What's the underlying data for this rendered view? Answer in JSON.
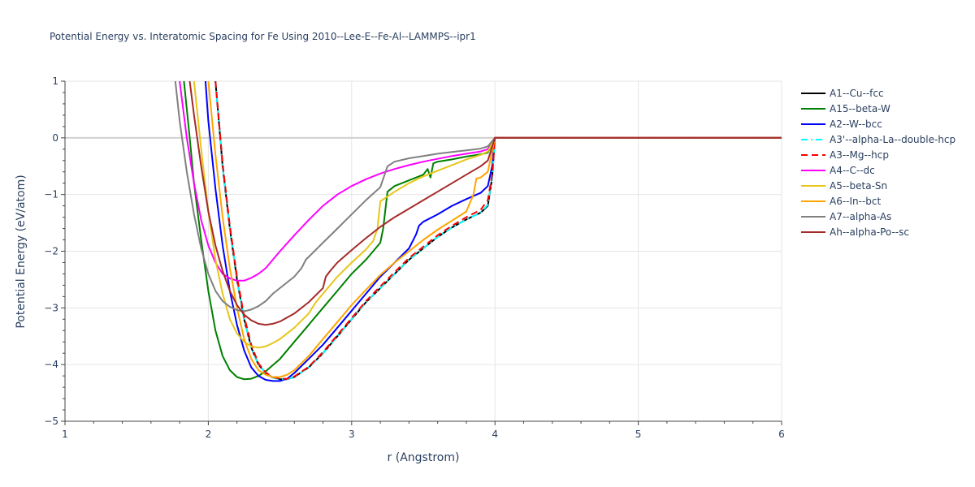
{
  "chart_data": {
    "type": "line",
    "title": "Potential Energy vs. Interatomic Spacing for Fe Using 2010--Lee-E--Fe-Al--LAMMPS--ipr1",
    "xlabel": "r (Angstrom)",
    "ylabel": "Potential Energy (eV/atom)",
    "xlim": [
      1,
      6
    ],
    "ylim": [
      -5,
      1
    ],
    "x_ticks": [
      1,
      2,
      3,
      4,
      5,
      6
    ],
    "y_ticks": [
      1,
      0,
      -1,
      -2,
      -3,
      -4,
      -5
    ],
    "y_tick_labels": [
      "1",
      "0",
      "−1",
      "−2",
      "−3",
      "−4",
      "−5"
    ],
    "grid": true,
    "legend_position": "right",
    "series": [
      {
        "name": "A1--Cu--fcc",
        "color": "#000000",
        "dash": "solid",
        "x": [
          2.05,
          2.1,
          2.15,
          2.2,
          2.25,
          2.3,
          2.35,
          2.4,
          2.45,
          2.5,
          2.55,
          2.6,
          2.7,
          2.8,
          2.9,
          3.0,
          3.1,
          3.2,
          3.3,
          3.4,
          3.5,
          3.6,
          3.7,
          3.8,
          3.9,
          3.95,
          3.98,
          4.0,
          6.0
        ],
        "y": [
          1.0,
          -0.5,
          -1.6,
          -2.5,
          -3.2,
          -3.7,
          -4.0,
          -4.15,
          -4.23,
          -4.26,
          -4.26,
          -4.22,
          -4.05,
          -3.8,
          -3.5,
          -3.2,
          -2.9,
          -2.65,
          -2.4,
          -2.15,
          -1.95,
          -1.75,
          -1.58,
          -1.44,
          -1.32,
          -1.2,
          -0.7,
          0.0,
          0.0
        ]
      },
      {
        "name": "A15--beta-W",
        "color": "#008000",
        "dash": "solid",
        "x": [
          1.83,
          1.87,
          1.9,
          1.95,
          2.0,
          2.05,
          2.1,
          2.15,
          2.2,
          2.25,
          2.3,
          2.35,
          2.4,
          2.5,
          2.6,
          2.7,
          2.8,
          2.9,
          3.0,
          3.1,
          3.15,
          3.2,
          3.22,
          3.25,
          3.3,
          3.4,
          3.5,
          3.53,
          3.55,
          3.57,
          3.6,
          3.7,
          3.8,
          3.9,
          3.95,
          4.0,
          6.0
        ],
        "y": [
          1.0,
          0.0,
          -0.8,
          -1.8,
          -2.7,
          -3.4,
          -3.85,
          -4.1,
          -4.22,
          -4.26,
          -4.25,
          -4.2,
          -4.12,
          -3.9,
          -3.6,
          -3.3,
          -3.0,
          -2.7,
          -2.4,
          -2.15,
          -2.0,
          -1.85,
          -1.6,
          -0.95,
          -0.85,
          -0.75,
          -0.65,
          -0.55,
          -0.7,
          -0.45,
          -0.42,
          -0.38,
          -0.33,
          -0.29,
          -0.26,
          0.0,
          0.0
        ]
      },
      {
        "name": "A2--W--bcc",
        "color": "#0000ff",
        "dash": "solid",
        "x": [
          1.98,
          2.0,
          2.05,
          2.1,
          2.15,
          2.2,
          2.25,
          2.3,
          2.35,
          2.4,
          2.45,
          2.5,
          2.55,
          2.6,
          2.7,
          2.8,
          2.9,
          3.0,
          3.1,
          3.2,
          3.3,
          3.4,
          3.45,
          3.47,
          3.5,
          3.6,
          3.7,
          3.8,
          3.9,
          3.95,
          3.98,
          4.0,
          6.0
        ],
        "y": [
          1.0,
          0.3,
          -0.9,
          -1.9,
          -2.7,
          -3.3,
          -3.75,
          -4.05,
          -4.2,
          -4.27,
          -4.29,
          -4.29,
          -4.25,
          -4.15,
          -3.9,
          -3.65,
          -3.35,
          -3.05,
          -2.75,
          -2.45,
          -2.2,
          -1.95,
          -1.7,
          -1.55,
          -1.48,
          -1.35,
          -1.2,
          -1.08,
          -0.97,
          -0.85,
          -0.5,
          0.0,
          0.0
        ]
      },
      {
        "name": "A3'--alpha-La--double-hcp",
        "color": "#00ffff",
        "dash": "dashdot",
        "x": [
          2.05,
          2.1,
          2.15,
          2.2,
          2.25,
          2.3,
          2.35,
          2.4,
          2.45,
          2.5,
          2.55,
          2.6,
          2.7,
          2.8,
          2.9,
          3.0,
          3.1,
          3.2,
          3.3,
          3.4,
          3.5,
          3.6,
          3.7,
          3.8,
          3.9,
          3.95,
          3.98,
          4.0,
          6.0
        ],
        "y": [
          1.0,
          -0.5,
          -1.6,
          -2.5,
          -3.2,
          -3.7,
          -4.0,
          -4.15,
          -4.23,
          -4.26,
          -4.26,
          -4.22,
          -4.05,
          -3.8,
          -3.5,
          -3.2,
          -2.9,
          -2.65,
          -2.4,
          -2.15,
          -1.95,
          -1.75,
          -1.58,
          -1.44,
          -1.32,
          -1.18,
          -0.7,
          0.0,
          0.0
        ]
      },
      {
        "name": "A3--Mg--hcp",
        "color": "#ff0000",
        "dash": "dash",
        "x": [
          2.05,
          2.1,
          2.15,
          2.2,
          2.25,
          2.3,
          2.35,
          2.4,
          2.45,
          2.5,
          2.55,
          2.6,
          2.7,
          2.8,
          2.9,
          3.0,
          3.1,
          3.2,
          3.3,
          3.4,
          3.5,
          3.6,
          3.7,
          3.8,
          3.9,
          3.95,
          3.98,
          4.0,
          6.0
        ],
        "y": [
          1.0,
          -0.45,
          -1.55,
          -2.45,
          -3.15,
          -3.65,
          -3.98,
          -4.14,
          -4.22,
          -4.25,
          -4.25,
          -4.21,
          -4.04,
          -3.78,
          -3.48,
          -3.18,
          -2.88,
          -2.62,
          -2.37,
          -2.12,
          -1.92,
          -1.72,
          -1.55,
          -1.4,
          -1.27,
          -1.1,
          -0.65,
          0.0,
          0.0
        ]
      },
      {
        "name": "A4--C--dc",
        "color": "#ff00ff",
        "dash": "solid",
        "x": [
          1.8,
          1.85,
          1.9,
          1.95,
          2.0,
          2.05,
          2.1,
          2.15,
          2.2,
          2.25,
          2.3,
          2.35,
          2.4,
          2.5,
          2.6,
          2.7,
          2.8,
          2.9,
          3.0,
          3.1,
          3.2,
          3.3,
          3.4,
          3.5,
          3.6,
          3.7,
          3.8,
          3.9,
          3.95,
          4.0,
          6.0
        ],
        "y": [
          1.0,
          0.0,
          -0.8,
          -1.45,
          -1.9,
          -2.2,
          -2.4,
          -2.48,
          -2.52,
          -2.52,
          -2.47,
          -2.4,
          -2.3,
          -2.0,
          -1.72,
          -1.45,
          -1.2,
          -1.0,
          -0.85,
          -0.73,
          -0.63,
          -0.55,
          -0.48,
          -0.42,
          -0.37,
          -0.32,
          -0.28,
          -0.24,
          -0.2,
          0.0,
          0.0
        ]
      },
      {
        "name": "A5--beta-Sn",
        "color": "#e6c619",
        "dash": "solid",
        "x": [
          1.9,
          1.95,
          2.0,
          2.05,
          2.1,
          2.15,
          2.2,
          2.25,
          2.3,
          2.35,
          2.4,
          2.45,
          2.5,
          2.6,
          2.7,
          2.75,
          2.8,
          2.9,
          3.0,
          3.1,
          3.15,
          3.18,
          3.2,
          3.3,
          3.4,
          3.5,
          3.6,
          3.7,
          3.8,
          3.9,
          3.95,
          4.0,
          6.0
        ],
        "y": [
          1.0,
          -0.2,
          -1.3,
          -2.15,
          -2.75,
          -3.2,
          -3.45,
          -3.6,
          -3.68,
          -3.7,
          -3.68,
          -3.62,
          -3.55,
          -3.35,
          -3.1,
          -2.9,
          -2.75,
          -2.45,
          -2.2,
          -1.97,
          -1.82,
          -1.6,
          -1.12,
          -0.95,
          -0.8,
          -0.68,
          -0.58,
          -0.48,
          -0.38,
          -0.3,
          -0.24,
          0.0,
          0.0
        ]
      },
      {
        "name": "A6--In--bct",
        "color": "#ffa500",
        "dash": "solid",
        "x": [
          2.0,
          2.05,
          2.1,
          2.15,
          2.2,
          2.25,
          2.3,
          2.35,
          2.4,
          2.45,
          2.5,
          2.55,
          2.6,
          2.7,
          2.8,
          2.9,
          3.0,
          3.1,
          3.2,
          3.3,
          3.4,
          3.5,
          3.6,
          3.7,
          3.8,
          3.85,
          3.87,
          3.9,
          3.95,
          4.0,
          6.0
        ],
        "y": [
          1.0,
          -0.3,
          -1.4,
          -2.3,
          -3.0,
          -3.55,
          -3.9,
          -4.1,
          -4.18,
          -4.22,
          -4.22,
          -4.18,
          -4.1,
          -3.85,
          -3.55,
          -3.25,
          -2.95,
          -2.68,
          -2.42,
          -2.2,
          -2.0,
          -1.8,
          -1.62,
          -1.46,
          -1.3,
          -1.0,
          -0.72,
          -0.7,
          -0.6,
          0.0,
          0.0
        ]
      },
      {
        "name": "A7--alpha-As",
        "color": "#808080",
        "dash": "solid",
        "x": [
          1.77,
          1.8,
          1.85,
          1.9,
          1.95,
          2.0,
          2.05,
          2.1,
          2.15,
          2.2,
          2.25,
          2.3,
          2.35,
          2.4,
          2.45,
          2.5,
          2.6,
          2.65,
          2.68,
          2.7,
          2.8,
          2.9,
          3.0,
          3.1,
          3.2,
          3.25,
          3.3,
          3.4,
          3.5,
          3.6,
          3.7,
          3.8,
          3.9,
          3.95,
          4.0,
          6.0
        ],
        "y": [
          1.0,
          0.3,
          -0.6,
          -1.35,
          -1.95,
          -2.4,
          -2.7,
          -2.88,
          -2.98,
          -3.04,
          -3.06,
          -3.03,
          -2.97,
          -2.88,
          -2.75,
          -2.65,
          -2.45,
          -2.3,
          -2.15,
          -2.1,
          -1.85,
          -1.6,
          -1.35,
          -1.1,
          -0.87,
          -0.5,
          -0.42,
          -0.36,
          -0.32,
          -0.28,
          -0.25,
          -0.22,
          -0.19,
          -0.15,
          0.0,
          0.0
        ]
      },
      {
        "name": "Ah--alpha-Po--sc",
        "color": "#a52a2a",
        "dash": "solid",
        "x": [
          1.87,
          1.9,
          1.95,
          2.0,
          2.05,
          2.1,
          2.15,
          2.2,
          2.25,
          2.3,
          2.35,
          2.4,
          2.45,
          2.5,
          2.6,
          2.7,
          2.8,
          2.82,
          2.85,
          2.9,
          3.0,
          3.1,
          3.2,
          3.3,
          3.4,
          3.5,
          3.6,
          3.7,
          3.8,
          3.9,
          3.95,
          4.0,
          6.0
        ],
        "y": [
          1.0,
          0.4,
          -0.5,
          -1.3,
          -1.9,
          -2.35,
          -2.7,
          -2.95,
          -3.12,
          -3.22,
          -3.28,
          -3.3,
          -3.28,
          -3.24,
          -3.1,
          -2.9,
          -2.65,
          -2.45,
          -2.35,
          -2.2,
          -1.98,
          -1.77,
          -1.57,
          -1.4,
          -1.25,
          -1.1,
          -0.95,
          -0.8,
          -0.65,
          -0.5,
          -0.4,
          0.0,
          0.0
        ]
      }
    ]
  }
}
